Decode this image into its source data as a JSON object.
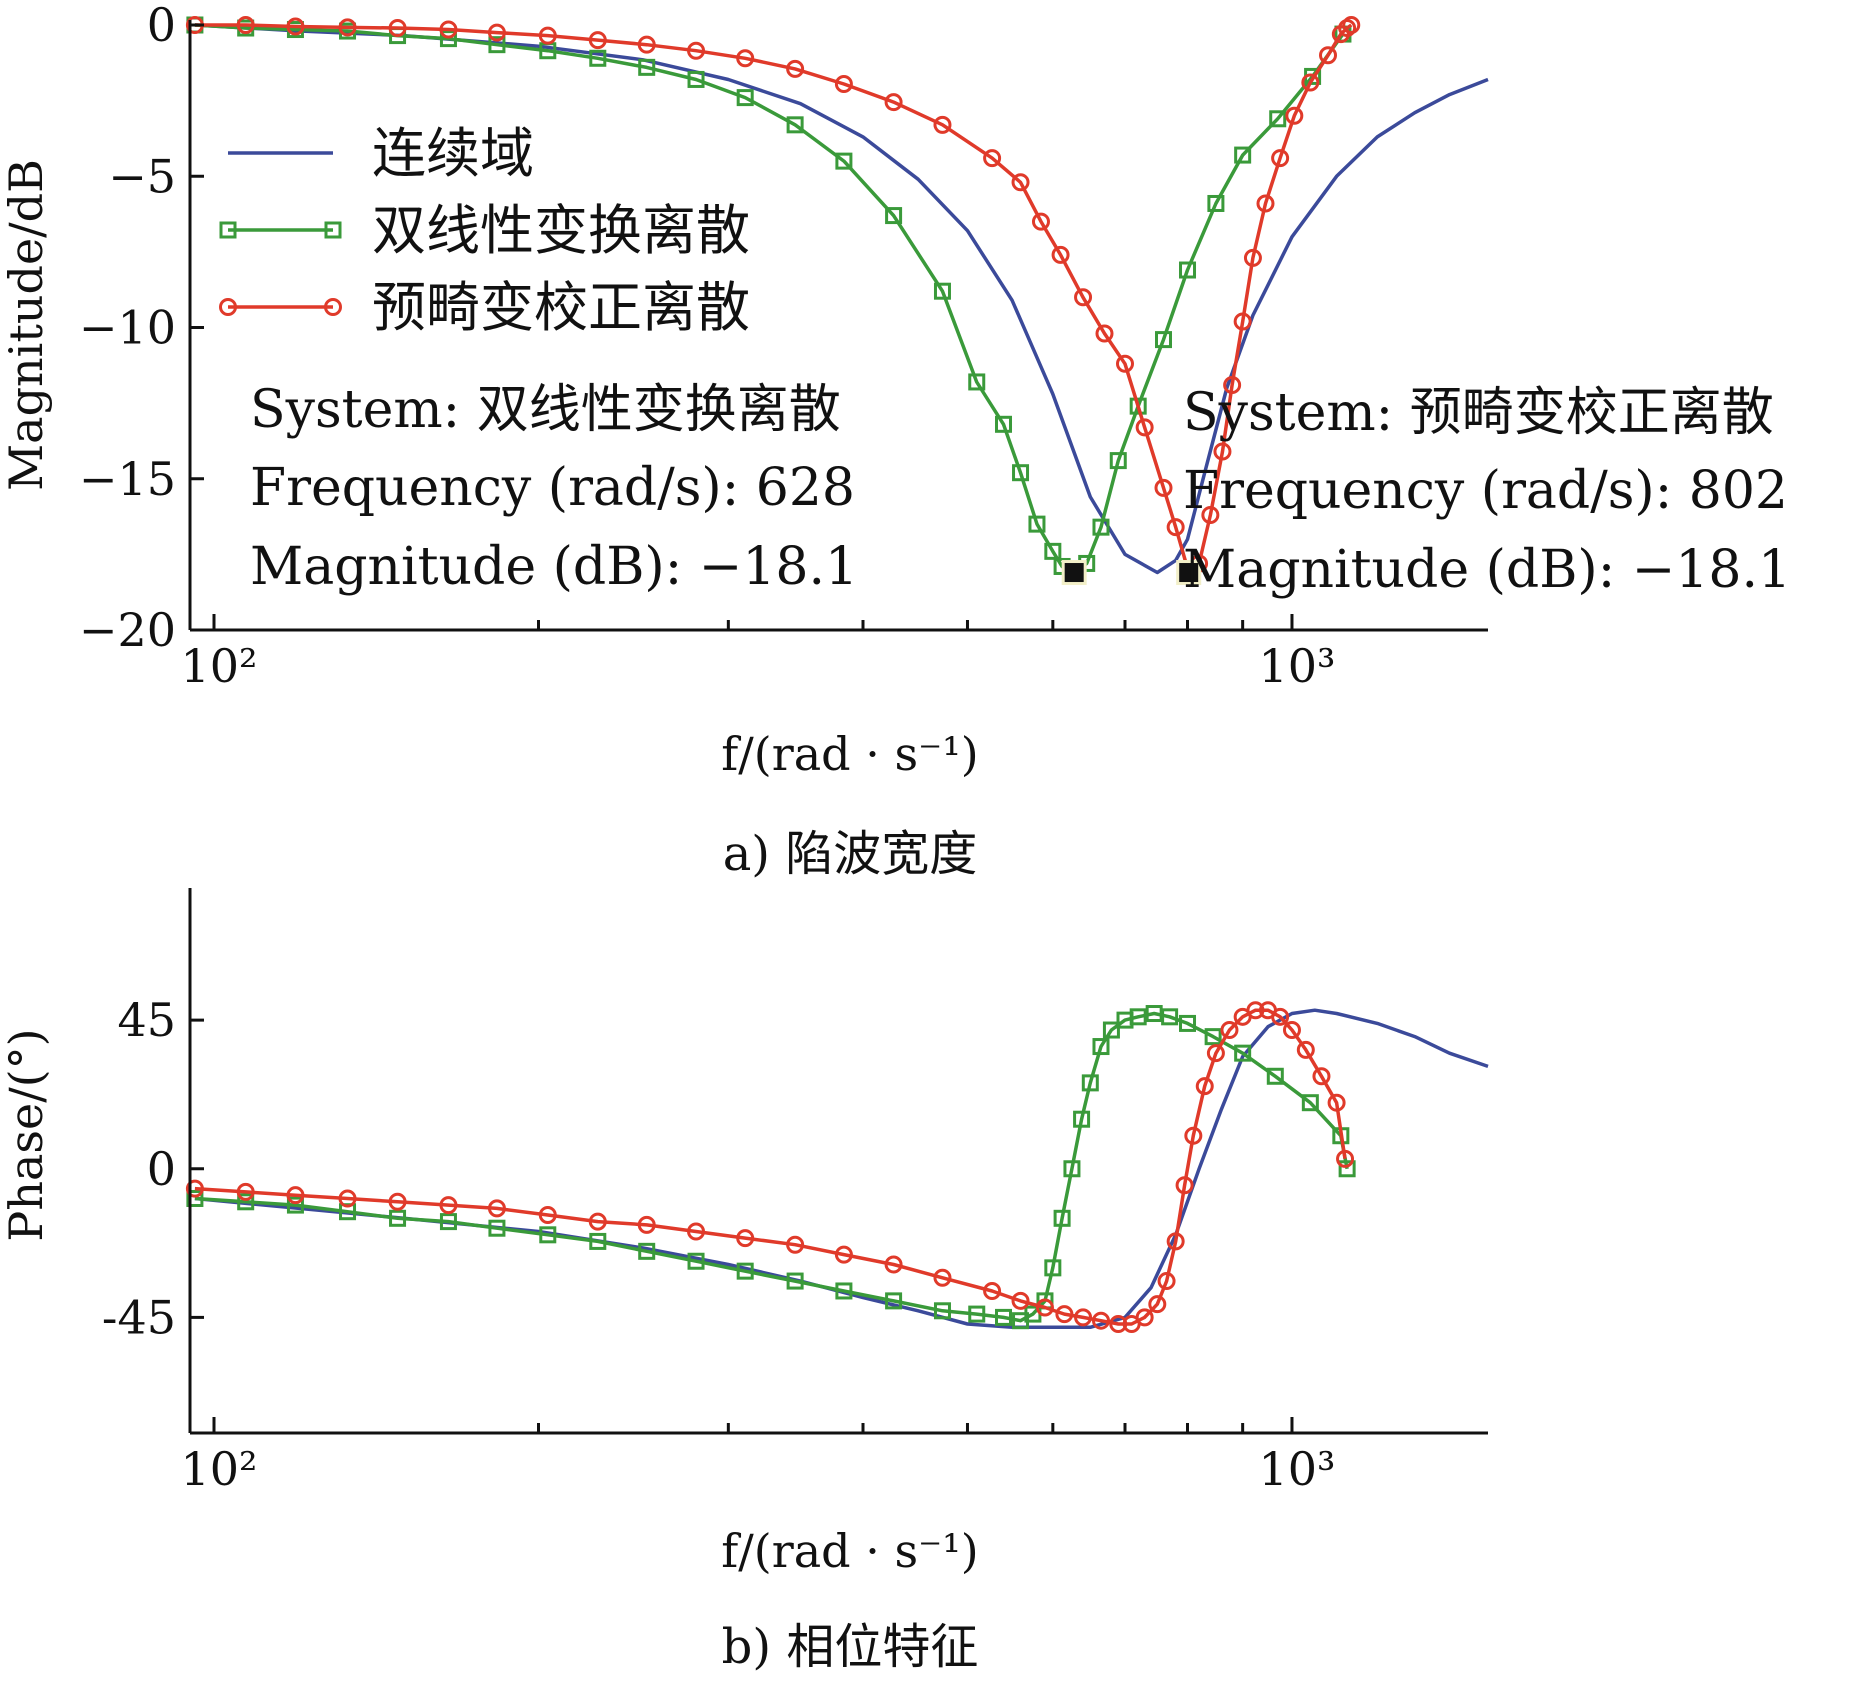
{
  "chart_data": [
    {
      "id": "magnitude",
      "type": "line",
      "caption": "a) 陷波宽度",
      "xlabel": "f/(rad · s⁻¹)",
      "ylabel": "Magnitude/dB",
      "xscale": "log",
      "xlim": [
        95,
        1520
      ],
      "ylim": [
        -20,
        0
      ],
      "yticks": [
        0,
        -5,
        -10,
        -15,
        -20
      ],
      "yticklabels": [
        "0",
        "−5",
        "−10",
        "−15",
        "−20"
      ],
      "xticks": [
        100,
        1000
      ],
      "xticklabels": [
        "10²",
        "10³"
      ],
      "legend": {
        "placement": "upper-left",
        "entries": [
          "连续域",
          "双线性变换离散",
          "预畸变校正离散"
        ]
      },
      "series": [
        {
          "name": "连续域",
          "color": "#3b4a9a",
          "marker": "none",
          "x": [
            96,
            120,
            150,
            200,
            250,
            300,
            350,
            400,
            450,
            500,
            550,
            600,
            650,
            700,
            750,
            780,
            800,
            830,
            870,
            920,
            1000,
            1100,
            1200,
            1300,
            1400,
            1520
          ],
          "y": [
            0,
            -0.2,
            -0.35,
            -0.7,
            -1.15,
            -1.8,
            -2.6,
            -3.7,
            -5.1,
            -6.8,
            -9.1,
            -12.2,
            -15.6,
            -17.5,
            -18.1,
            -17.7,
            -17.0,
            -14.8,
            -12.0,
            -9.6,
            -7.0,
            -5.0,
            -3.7,
            -2.9,
            -2.3,
            -1.8
          ]
        },
        {
          "name": "双线性变换离散",
          "color": "#3a9a3a",
          "marker": "square",
          "x": [
            96,
            107,
            119,
            133,
            148,
            165,
            183,
            204,
            227,
            252,
            280,
            311,
            346,
            384,
            427,
            474,
            510,
            540,
            560,
            580,
            600,
            612,
            628,
            645,
            665,
            690,
            720,
            760,
            800,
            850,
            900,
            970,
            1045,
            1115
          ],
          "y": [
            0,
            -0.1,
            -0.15,
            -0.2,
            -0.35,
            -0.45,
            -0.65,
            -0.85,
            -1.1,
            -1.4,
            -1.8,
            -2.4,
            -3.3,
            -4.5,
            -6.3,
            -8.8,
            -11.8,
            -13.2,
            -14.8,
            -16.5,
            -17.4,
            -17.9,
            -18.1,
            -17.8,
            -16.6,
            -14.4,
            -12.6,
            -10.4,
            -8.1,
            -5.9,
            -4.3,
            -3.1,
            -1.7,
            -0.3
          ]
        },
        {
          "name": "预畸变校正离散",
          "color": "#e03a2a",
          "marker": "circle",
          "x": [
            96,
            107,
            119,
            133,
            148,
            165,
            183,
            204,
            227,
            252,
            280,
            311,
            346,
            384,
            427,
            474,
            527,
            560,
            585,
            610,
            640,
            670,
            700,
            730,
            760,
            780,
            802,
            820,
            840,
            862,
            880,
            900,
            920,
            945,
            975,
            1005,
            1040,
            1080,
            1110,
            1125,
            1135
          ],
          "y": [
            0,
            0,
            -0.05,
            -0.08,
            -0.1,
            -0.15,
            -0.25,
            -0.35,
            -0.5,
            -0.65,
            -0.85,
            -1.1,
            -1.45,
            -1.95,
            -2.55,
            -3.3,
            -4.4,
            -5.2,
            -6.5,
            -7.6,
            -9.0,
            -10.2,
            -11.2,
            -13.3,
            -15.3,
            -16.6,
            -18.1,
            -17.8,
            -16.2,
            -14.1,
            -11.9,
            -9.8,
            -7.7,
            -5.9,
            -4.4,
            -3.0,
            -1.9,
            -1.0,
            -0.3,
            -0.1,
            0.0
          ]
        }
      ],
      "annotations": [
        {
          "marker_x": 628,
          "marker_y": -18.1,
          "lines": [
            "System: 双线性变换离散",
            "Frequency (rad/s): 628",
            "Magnitude (dB): −18.1"
          ]
        },
        {
          "marker_x": 802,
          "marker_y": -18.1,
          "lines": [
            "System: 预畸变校正离散",
            "Frequency (rad/s): 802",
            "Magnitude (dB): −18.1"
          ]
        }
      ]
    },
    {
      "id": "phase",
      "type": "line",
      "caption": "b) 相位特征",
      "xlabel": "f/(rad · s⁻¹)",
      "ylabel": "Phase/(°)",
      "xscale": "log",
      "xlim": [
        95,
        1520
      ],
      "ylim": [
        -80,
        85
      ],
      "yticks": [
        45,
        0,
        -45
      ],
      "yticklabels": [
        "45",
        "0",
        "-45"
      ],
      "xticks": [
        100,
        1000
      ],
      "xticklabels": [
        "10²",
        "10³"
      ],
      "series": [
        {
          "name": "连续域",
          "color": "#3b4a9a",
          "marker": "none",
          "x": [
            96,
            120,
            150,
            200,
            250,
            300,
            350,
            400,
            450,
            500,
            550,
            600,
            650,
            700,
            740,
            780,
            820,
            860,
            900,
            950,
            1000,
            1050,
            1100,
            1200,
            1300,
            1400,
            1520
          ],
          "y": [
            -9,
            -12,
            -15,
            -19,
            -24,
            -29,
            -34,
            -39,
            -43,
            -47,
            -48,
            -48,
            -48,
            -45,
            -36,
            -20,
            0,
            18,
            34,
            43,
            47,
            48,
            47,
            44,
            40,
            35,
            31
          ]
        },
        {
          "name": "双线性变换离散",
          "color": "#3a9a3a",
          "marker": "square",
          "x": [
            96,
            107,
            119,
            133,
            148,
            165,
            183,
            204,
            227,
            252,
            280,
            311,
            346,
            384,
            427,
            474,
            510,
            540,
            560,
            575,
            590,
            600,
            612,
            625,
            638,
            650,
            665,
            680,
            700,
            720,
            745,
            770,
            800,
            845,
            900,
            965,
            1040,
            1110,
            1125
          ],
          "y": [
            -9,
            -10,
            -11,
            -13,
            -15,
            -16,
            -18,
            -20,
            -22,
            -25,
            -28,
            -31,
            -34,
            -37,
            -40,
            -43,
            -44,
            -45,
            -46,
            -44,
            -40,
            -30,
            -15,
            0,
            15,
            26,
            37,
            42,
            45,
            46,
            47,
            46,
            44,
            40,
            35,
            28,
            20,
            10,
            0
          ]
        },
        {
          "name": "预畸变校正离散",
          "color": "#e03a2a",
          "marker": "circle",
          "x": [
            96,
            107,
            119,
            133,
            148,
            165,
            183,
            204,
            227,
            252,
            280,
            311,
            346,
            384,
            427,
            474,
            527,
            560,
            590,
            615,
            640,
            665,
            690,
            710,
            730,
            750,
            765,
            780,
            795,
            810,
            830,
            850,
            875,
            900,
            925,
            950,
            975,
            1000,
            1030,
            1065,
            1100,
            1120
          ],
          "y": [
            -6,
            -7,
            -8,
            -9,
            -10,
            -11,
            -12,
            -14,
            -16,
            -17,
            -19,
            -21,
            -23,
            -26,
            -29,
            -33,
            -37,
            -40,
            -42,
            -44,
            -45,
            -46,
            -47,
            -47,
            -45,
            -41,
            -34,
            -22,
            -5,
            10,
            25,
            35,
            42,
            46,
            48,
            48,
            46,
            42,
            36,
            28,
            20,
            3
          ]
        }
      ]
    }
  ]
}
